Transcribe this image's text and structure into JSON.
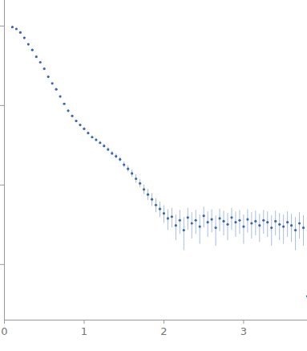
{
  "chart_data": {
    "type": "scatter",
    "x": [
      0.1,
      0.15,
      0.2,
      0.25,
      0.3,
      0.35,
      0.4,
      0.45,
      0.5,
      0.55,
      0.6,
      0.65,
      0.7,
      0.75,
      0.8,
      0.85,
      0.9,
      0.95,
      1.0,
      1.05,
      1.1,
      1.15,
      1.2,
      1.25,
      1.3,
      1.35,
      1.4,
      1.45,
      1.5,
      1.55,
      1.6,
      1.65,
      1.7,
      1.75,
      1.8,
      1.85,
      1.9,
      1.95,
      2.0,
      2.05,
      2.1,
      2.15,
      2.2,
      2.25,
      2.3,
      2.35,
      2.4,
      2.45,
      2.5,
      2.55,
      2.6,
      2.65,
      2.7,
      2.75,
      2.8,
      2.85,
      2.9,
      2.95,
      3.0,
      3.05,
      3.1,
      3.15,
      3.2,
      3.25,
      3.3,
      3.35,
      3.4,
      3.45,
      3.5,
      3.55,
      3.6,
      3.65,
      3.7,
      3.75,
      3.8
    ],
    "values": [
      0.97,
      0.92,
      0.83,
      0.71,
      0.59,
      0.5,
      0.41,
      0.35,
      0.29,
      0.23,
      0.19,
      0.16,
      0.13,
      0.105,
      0.086,
      0.074,
      0.064,
      0.057,
      0.051,
      0.045,
      0.04,
      0.037,
      0.034,
      0.031,
      0.028,
      0.025,
      0.023,
      0.021,
      0.018,
      0.016,
      0.014,
      0.012,
      0.0105,
      0.0088,
      0.0076,
      0.0066,
      0.0056,
      0.005,
      0.0044,
      0.0038,
      0.004,
      0.0031,
      0.0036,
      0.0027,
      0.0039,
      0.0033,
      0.0036,
      0.003,
      0.0041,
      0.0034,
      0.0037,
      0.0029,
      0.0038,
      0.0035,
      0.0032,
      0.0039,
      0.0034,
      0.0036,
      0.003,
      0.0037,
      0.0033,
      0.0035,
      0.0031,
      0.0036,
      0.0034,
      0.0029,
      0.0035,
      0.0032,
      0.003,
      0.0034,
      0.0031,
      0.0027,
      0.0033,
      0.0029,
      0.0004
    ],
    "errors": [
      0.005,
      0.005,
      0.004,
      0.004,
      0.003,
      0.003,
      0.003,
      0.002,
      0.002,
      0.002,
      0.002,
      0.002,
      0.002,
      0.0015,
      0.0015,
      0.0015,
      0.0015,
      0.0015,
      0.0015,
      0.0015,
      0.0015,
      0.0015,
      0.0015,
      0.0015,
      0.0015,
      0.0015,
      0.0015,
      0.0015,
      0.0015,
      0.0015,
      0.0015,
      0.0015,
      0.0012,
      0.0012,
      0.0012,
      0.0012,
      0.0011,
      0.0011,
      0.0011,
      0.0011,
      0.0011,
      0.0011,
      0.0012,
      0.0012,
      0.0012,
      0.0012,
      0.0012,
      0.0012,
      0.0012,
      0.0012,
      0.0012,
      0.0012,
      0.0012,
      0.0012,
      0.0012,
      0.0012,
      0.0012,
      0.0012,
      0.0012,
      0.0012,
      0.0012,
      0.0012,
      0.0012,
      0.0012,
      0.0012,
      0.0012,
      0.0012,
      0.0012,
      0.0012,
      0.0012,
      0.0012,
      0.0012,
      0.0012,
      0.0012,
      0.0003
    ],
    "color": "#3a66b0",
    "error_color": "#a9bde3",
    "marker": "circle",
    "log": "y",
    "xlim": [
      0,
      3.8
    ],
    "xticks": [
      0,
      1,
      2,
      3
    ],
    "ylim": [
      0.0002,
      2.1
    ],
    "yticks": [
      0.001,
      0.01,
      0.1,
      1
    ],
    "tick_labels": "x",
    "grid": false
  }
}
